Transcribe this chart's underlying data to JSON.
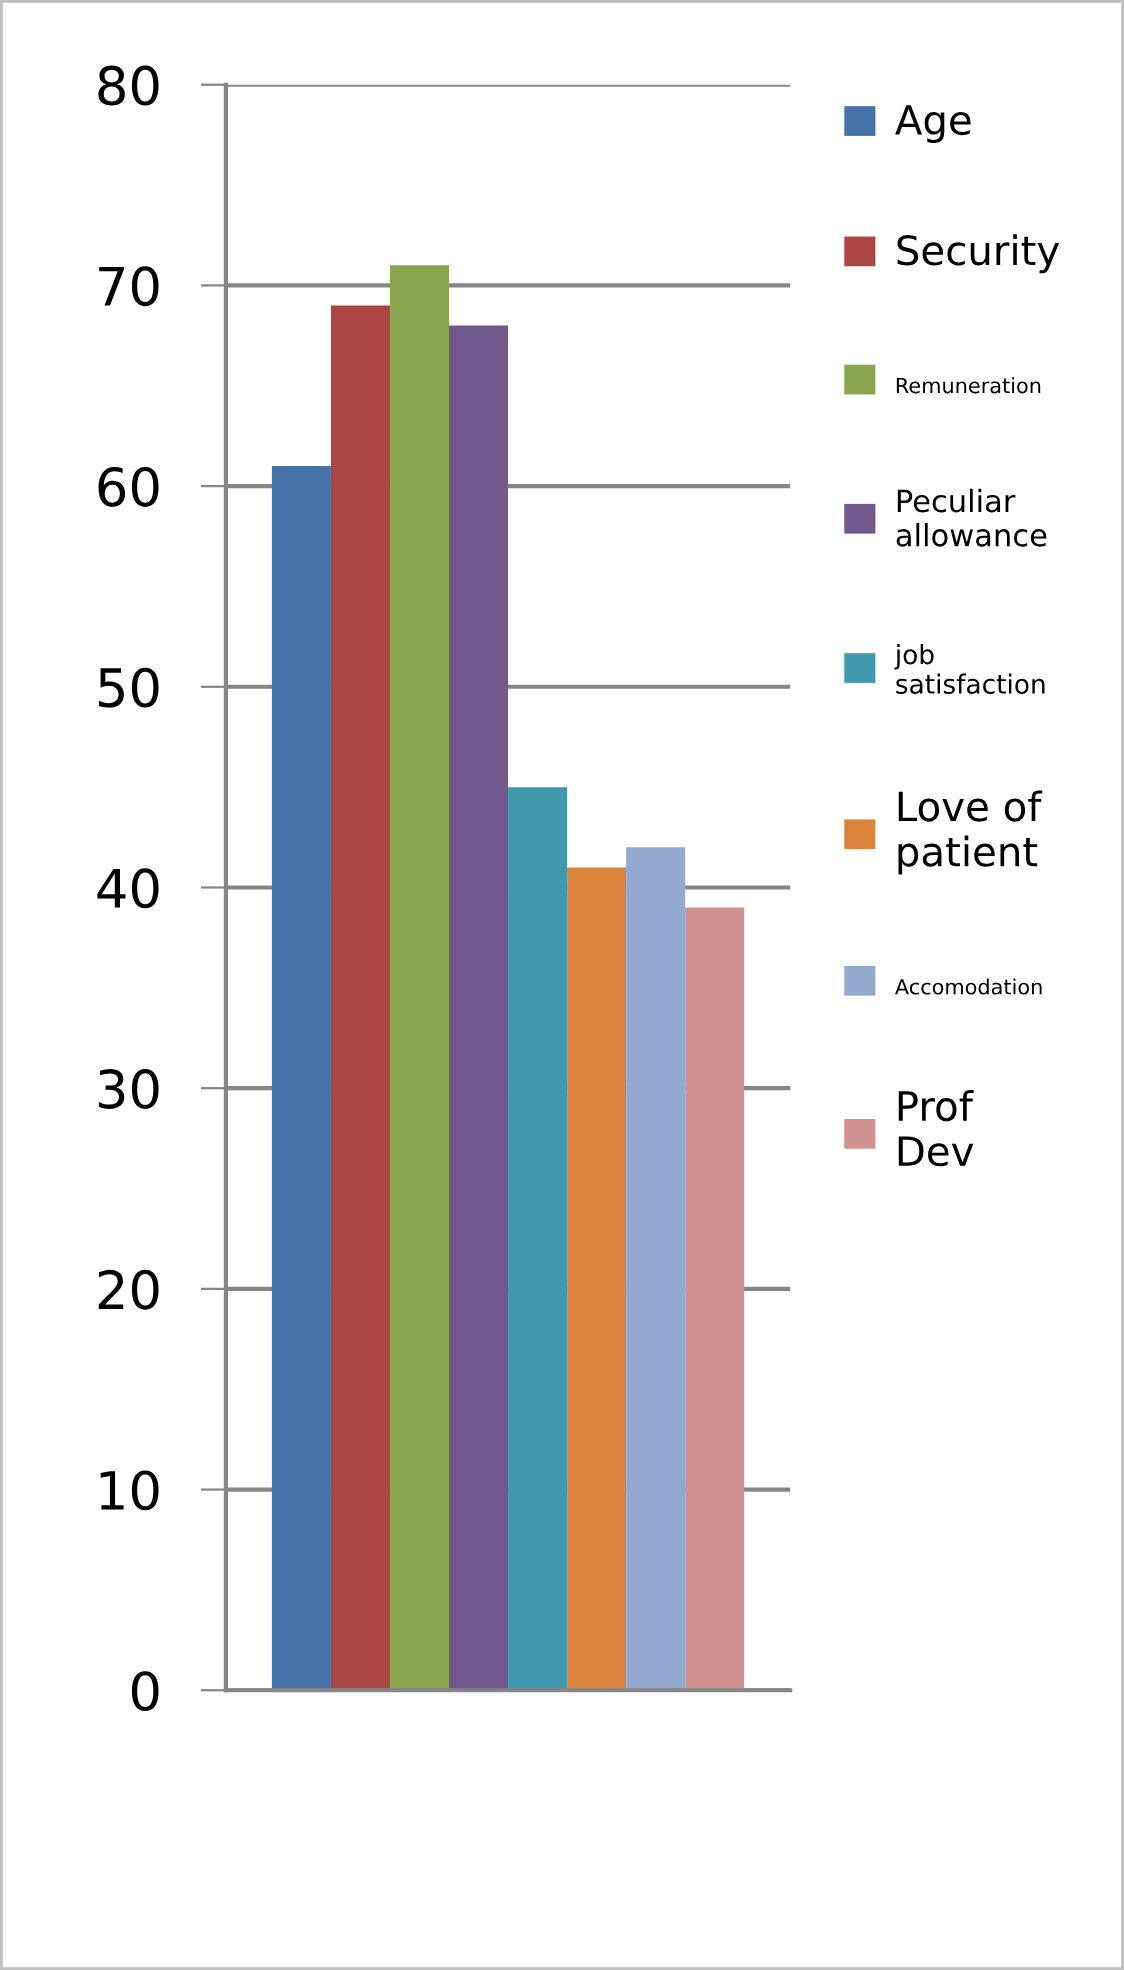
{
  "chart_data": {
    "type": "bar",
    "categories": [
      null
    ],
    "ylim": [
      0,
      80
    ],
    "yticks": [
      0,
      10,
      20,
      30,
      40,
      50,
      60,
      70,
      80
    ],
    "grid": "y",
    "legend": "right",
    "series": [
      {
        "name": "Age",
        "color": "#4572a7",
        "values": [
          61
        ]
      },
      {
        "name": "Security",
        "color": "#aa4643",
        "values": [
          69
        ]
      },
      {
        "name": "Remuneration",
        "color": "#89a54e",
        "values": [
          71
        ]
      },
      {
        "name": "Peculiar\nallowance",
        "color": "#71588f",
        "values": [
          68
        ]
      },
      {
        "name": "job\nsatisfaction",
        "color": "#4198af",
        "values": [
          45
        ]
      },
      {
        "name": "Love of\npatient",
        "color": "#db843d",
        "values": [
          41
        ]
      },
      {
        "name": "Accomodation",
        "color": "#93a9cf",
        "values": [
          42
        ]
      },
      {
        "name": "Prof\nDev",
        "color": "#d19392",
        "values": [
          39
        ]
      }
    ]
  }
}
